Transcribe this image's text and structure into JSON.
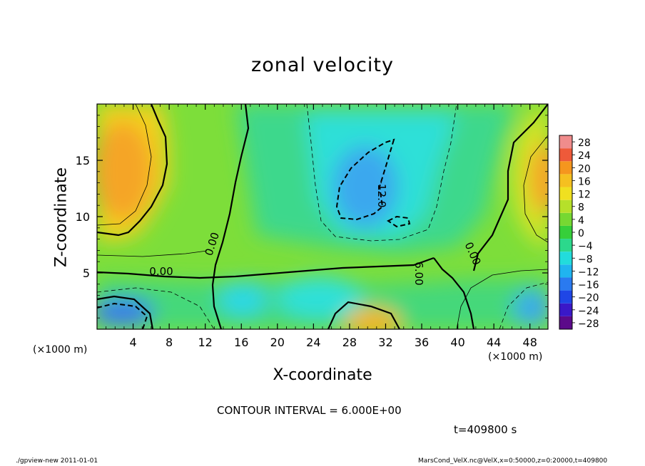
{
  "chart_data": {
    "type": "heatmap",
    "title": "zonal velocity",
    "xlabel": "X-coordinate",
    "ylabel": "Z-coordinate",
    "x_unit": "(×1000 m)",
    "xlim": [
      0,
      50
    ],
    "ylim": [
      0,
      20
    ],
    "x_ticks": [
      4,
      8,
      12,
      16,
      20,
      24,
      28,
      32,
      36,
      40,
      44,
      48
    ],
    "y_ticks": [
      5,
      10,
      15
    ],
    "colorbar": {
      "levels": [
        28,
        24,
        20,
        16,
        12,
        8,
        4,
        0,
        -4,
        -8,
        -12,
        -16,
        -20,
        -24,
        -28
      ],
      "labels": [
        "28",
        "24",
        "20",
        "16",
        "12",
        "8",
        "4",
        "0",
        "−4",
        "−8",
        "−12",
        "−16",
        "−20",
        "−24",
        "−28"
      ]
    },
    "contour_labels": [
      "0.00",
      "0.00",
      "0.00",
      "-12.0",
      "6.00"
    ],
    "contour_interval": "CONTOUR INTERVAL = 6.000E+00",
    "time": "t=409800 s",
    "colors": {
      "neg_extreme": "#5a0080",
      "blue": "#2a4dd8",
      "cyan": "#22d8f0",
      "green": "#33cc33",
      "yellow": "#f0e020",
      "orange": "#f5a020",
      "red": "#e84040",
      "pink": "#f08080"
    }
  },
  "footer": {
    "left": "./gpview-new  2011-01-01",
    "right": "MarsCond_VelX.nc@VelX,x=0:50000,z=0:20000,t=409800"
  }
}
